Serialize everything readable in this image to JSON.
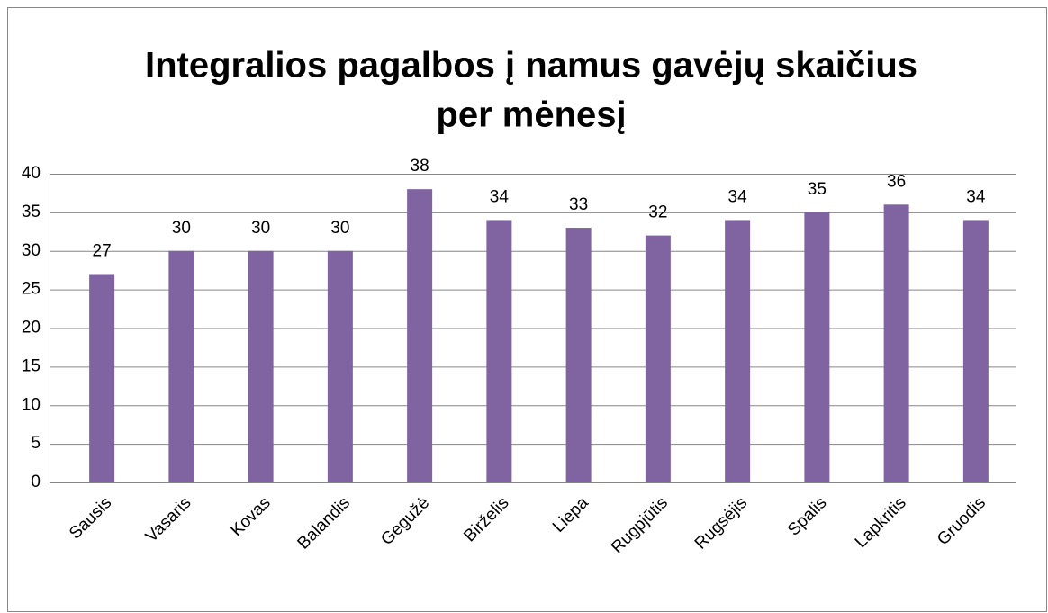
{
  "chart_data": {
    "type": "bar",
    "title": [
      "Integralios pagalbos į namus gavėjų skaičius",
      "per mėnesį"
    ],
    "categories": [
      "Sausis",
      "Vasaris",
      "Kovas",
      "Balandis",
      "Gegužė",
      "Birželis",
      "Liepa",
      "Rugpjūtis",
      "Rugsėjis",
      "Spalis",
      "Lapkritis",
      "Gruodis"
    ],
    "values": [
      27,
      30,
      30,
      30,
      38,
      34,
      33,
      32,
      34,
      35,
      36,
      34
    ],
    "color": "#8064a2",
    "ylim": [
      0,
      40
    ],
    "yticks": [
      0,
      5,
      10,
      15,
      20,
      25,
      30,
      35,
      40
    ],
    "grid": true
  }
}
